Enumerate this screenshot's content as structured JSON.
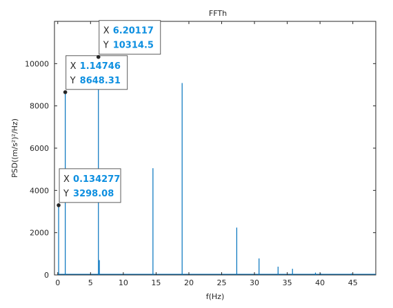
{
  "chart_data": {
    "type": "line",
    "title": "FFTh",
    "xlabel": "f(Hz)",
    "ylabel": "PSD((m/s²)²/Hz)",
    "xlim": [
      -0.5,
      48.5
    ],
    "ylim": [
      0,
      12000
    ],
    "xticks": [
      0,
      5,
      10,
      15,
      20,
      25,
      30,
      35,
      40,
      45
    ],
    "yticks": [
      0,
      2000,
      4000,
      6000,
      8000,
      10000
    ],
    "grid": false,
    "line_color": "#0072BD",
    "series": [
      {
        "x": [
          0.134277,
          1.14746,
          6.20117,
          6.35,
          14.52,
          18.97,
          27.3,
          30.7,
          33.6,
          35.8,
          39.3,
          40.1,
          44.8
        ],
        "y": [
          3298.08,
          8648.31,
          10314.5,
          700,
          5050,
          9080,
          2240,
          780,
          390,
          290,
          110,
          70,
          70
        ]
      }
    ],
    "annotations": [
      {
        "x_label": "X",
        "x_value": "0.134277",
        "y_label": "Y",
        "y_value": "3298.08",
        "x": 0.134277,
        "y": 3298.08
      },
      {
        "x_label": "X",
        "x_value": "1.14746",
        "y_label": "Y",
        "y_value": "8648.31",
        "x": 1.14746,
        "y": 8648.31
      },
      {
        "x_label": "X",
        "x_value": "6.20117",
        "y_label": "Y",
        "y_value": "10314.5",
        "x": 6.20117,
        "y": 10314.5
      }
    ]
  }
}
